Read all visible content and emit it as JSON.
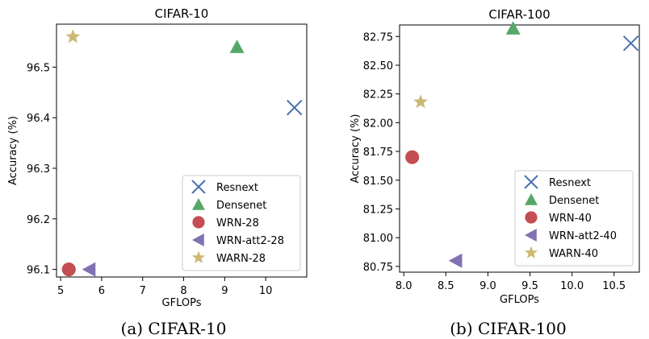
{
  "chart_data": [
    {
      "type": "scatter",
      "title": "CIFAR-10",
      "xlabel": "GFLOPs",
      "ylabel": "Accuracy (%)",
      "caption": "(a) CIFAR-10",
      "xlim": [
        4.9,
        11.0
      ],
      "ylim": [
        96.085,
        96.585
      ],
      "xticks": [
        5,
        6,
        7,
        8,
        9,
        10
      ],
      "yticks": [
        96.1,
        96.2,
        96.3,
        96.4,
        96.5
      ],
      "legend_position": "lower-right",
      "series": [
        {
          "name": "Resnext",
          "marker": "x",
          "color": "#4C72B0",
          "x": 10.7,
          "y": 96.42
        },
        {
          "name": "Densenet",
          "marker": "triangle-up",
          "color": "#55A868",
          "x": 9.3,
          "y": 96.54
        },
        {
          "name": "WRN-28",
          "marker": "circle",
          "color": "#C44E52",
          "x": 5.2,
          "y": 96.1
        },
        {
          "name": "WRN-att2-28",
          "marker": "triangle-left",
          "color": "#8172B2",
          "x": 5.7,
          "y": 96.1
        },
        {
          "name": "WARN-28",
          "marker": "star",
          "color": "#CCB974",
          "x": 5.3,
          "y": 96.56
        }
      ]
    },
    {
      "type": "scatter",
      "title": "CIFAR-100",
      "xlabel": "GFLOPs",
      "ylabel": "Accuracy (%)",
      "caption": "(b) CIFAR-100",
      "xlim": [
        7.95,
        10.8
      ],
      "ylim": [
        80.7,
        82.85
      ],
      "xticks": [
        "8.0",
        "8.5",
        "9.0",
        "9.5",
        "10.0",
        "10.5"
      ],
      "yticks": [
        "80.75",
        "81.00",
        "81.25",
        "81.50",
        "81.75",
        "82.00",
        "82.25",
        "82.50",
        "82.75"
      ],
      "legend_position": "lower-right",
      "series": [
        {
          "name": "Resnext",
          "marker": "x",
          "color": "#4C72B0",
          "x": 10.7,
          "y": 82.69
        },
        {
          "name": "Densenet",
          "marker": "triangle-up",
          "color": "#55A868",
          "x": 9.3,
          "y": 82.82
        },
        {
          "name": "WRN-40",
          "marker": "circle",
          "color": "#C44E52",
          "x": 8.1,
          "y": 81.7
        },
        {
          "name": "WRN-att2-40",
          "marker": "triangle-left",
          "color": "#8172B2",
          "x": 8.62,
          "y": 80.8
        },
        {
          "name": "WARN-40",
          "marker": "star",
          "color": "#CCB974",
          "x": 8.2,
          "y": 82.18
        }
      ]
    }
  ]
}
